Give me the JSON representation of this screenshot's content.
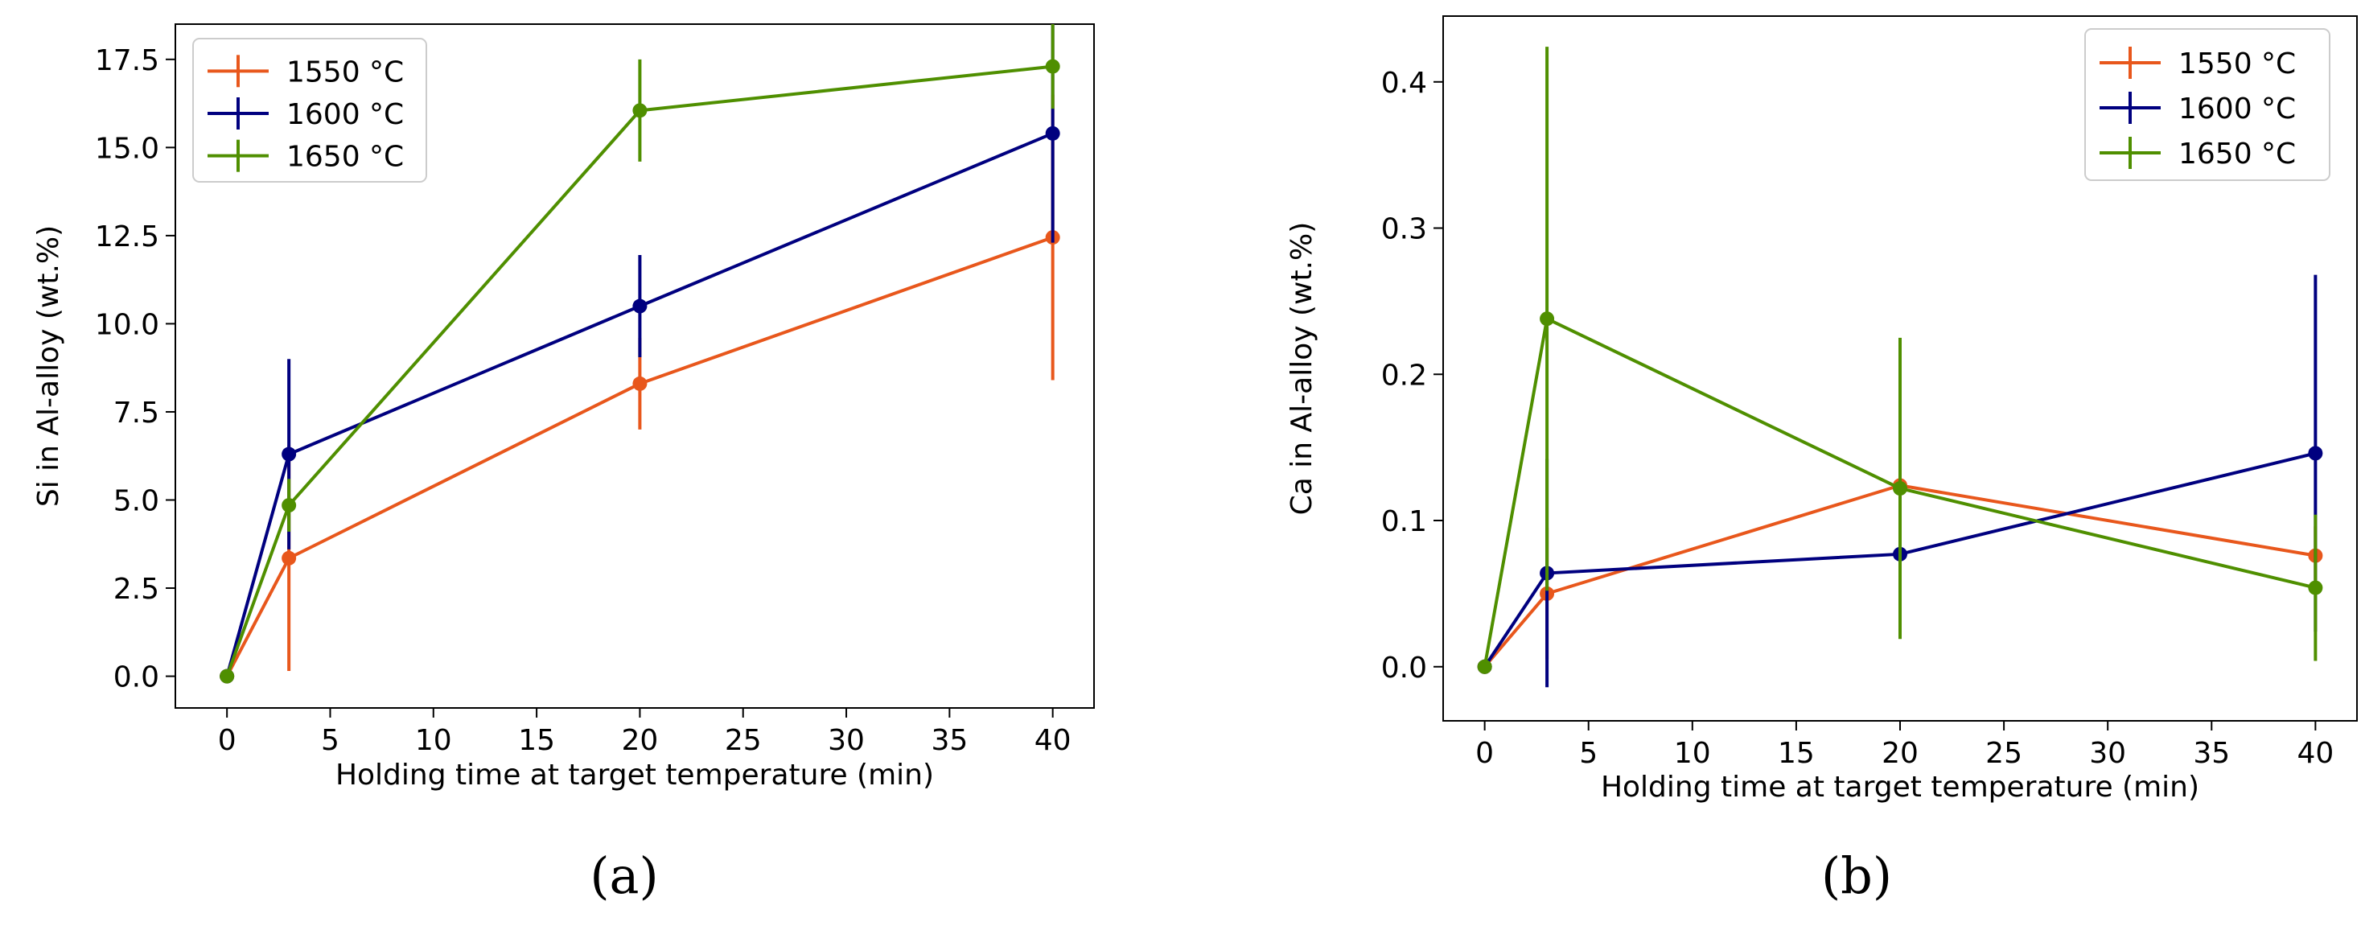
{
  "chart_data": [
    {
      "type": "line",
      "panel_label": "(a)",
      "xlabel": "Holding time at target temperature (min)",
      "ylabel": "Si in Al-alloy (wt.%)",
      "xlim": [
        -2.5,
        42
      ],
      "ylim": [
        -0.9,
        18.5
      ],
      "xticks": [
        0,
        5,
        10,
        15,
        20,
        25,
        30,
        35,
        40
      ],
      "xtick_labels": [
        "0",
        "5",
        "10",
        "15",
        "20",
        "25",
        "30",
        "35",
        "40"
      ],
      "yticks": [
        0.0,
        2.5,
        5.0,
        7.5,
        10.0,
        12.5,
        15.0,
        17.5
      ],
      "ytick_labels": [
        "0.0",
        "2.5",
        "5.0",
        "7.5",
        "10.0",
        "12.5",
        "15.0",
        "17.5"
      ],
      "legend_position": "upper-left",
      "series": [
        {
          "name": "1550 °C",
          "color": "#e8571c",
          "x": [
            0,
            3,
            20,
            40
          ],
          "y": [
            0.0,
            3.35,
            8.3,
            12.45
          ],
          "err": [
            0,
            3.2,
            1.3,
            4.05
          ]
        },
        {
          "name": "1600 °C",
          "color": "#00007f",
          "x": [
            0,
            3,
            20,
            40
          ],
          "y": [
            0.0,
            6.3,
            10.5,
            15.4
          ],
          "err": [
            0,
            2.7,
            1.45,
            3.1
          ]
        },
        {
          "name": "1650 °C",
          "color": "#4f8f00",
          "x": [
            0,
            3,
            20,
            40
          ],
          "y": [
            0.0,
            4.85,
            16.05,
            17.3
          ],
          "err": [
            0,
            0.75,
            1.45,
            1.2
          ]
        }
      ]
    },
    {
      "type": "line",
      "panel_label": "(b)",
      "xlabel": "Holding time at target temperature (min)",
      "ylabel": "Ca in Al-alloy (wt.%)",
      "xlim": [
        -2.0,
        42.0
      ],
      "ylim": [
        -0.037,
        0.445
      ],
      "xticks": [
        0,
        5,
        10,
        15,
        20,
        25,
        30,
        35,
        40
      ],
      "xtick_labels": [
        "0",
        "5",
        "10",
        "15",
        "20",
        "25",
        "30",
        "35",
        "40"
      ],
      "yticks": [
        0.0,
        0.1,
        0.2,
        0.3,
        0.4
      ],
      "ytick_labels": [
        "0.0",
        "0.1",
        "0.2",
        "0.3",
        "0.4"
      ],
      "legend_position": "upper-right",
      "series": [
        {
          "name": "1550 °C",
          "color": "#e8571c",
          "x": [
            0,
            3,
            20,
            40
          ],
          "y": [
            0.0,
            0.05,
            0.124,
            0.076
          ],
          "err": [
            0,
            0.045,
            0.1,
            0.02
          ]
        },
        {
          "name": "1600 °C",
          "color": "#00007f",
          "x": [
            0,
            3,
            20,
            40
          ],
          "y": [
            0.0,
            0.064,
            0.077,
            0.146
          ],
          "err": [
            0,
            0.078,
            0.055,
            0.122
          ]
        },
        {
          "name": "1650 °C",
          "color": "#4f8f00",
          "x": [
            0,
            3,
            20,
            40
          ],
          "y": [
            0.0,
            0.238,
            0.122,
            0.054
          ],
          "err": [
            0,
            0.186,
            0.103,
            0.05
          ]
        }
      ]
    }
  ]
}
